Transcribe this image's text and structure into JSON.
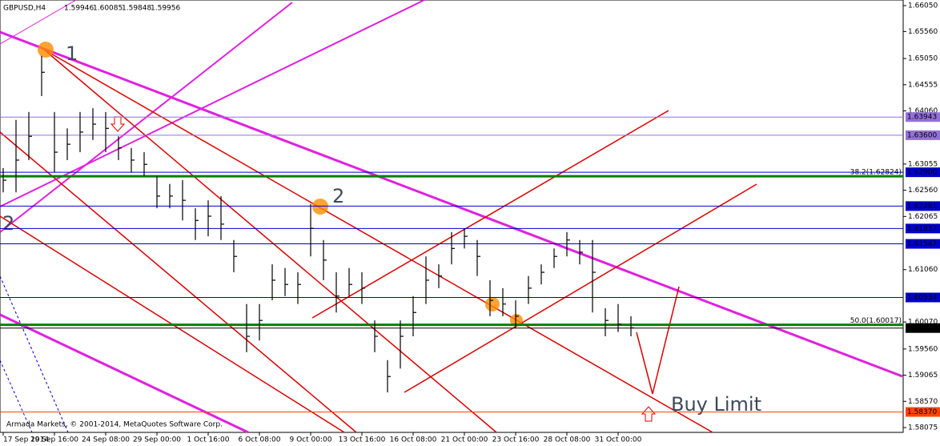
{
  "chart_data": {
    "type": "ohlc",
    "title": "GBPUSD,H4",
    "ohlc": [
      1.59946,
      1.60085,
      1.59848,
      1.59956
    ],
    "copyright": "Armada Markets, © 2001-2014, MetaQuotes Software Corp.",
    "annotations": [
      "1",
      "2",
      "2",
      "Buy Limit"
    ],
    "categories": [
      "17 Sep 2014",
      null,
      null,
      null,
      "19 Sep 16:00",
      null,
      null,
      null,
      "24 Sep 08:00",
      null,
      null,
      null,
      "29 Sep 00:00",
      null,
      null,
      null,
      "1 Oct 16:00",
      null,
      null,
      null,
      "6 Oct 08:00",
      null,
      null,
      null,
      "9 Oct 00:00",
      null,
      null,
      null,
      "13 Oct 16:00",
      null,
      null,
      null,
      "16 Oct 08:00",
      null,
      null,
      null,
      "21 Oct 00:00",
      null,
      null,
      null,
      "23 Oct 16:00",
      null,
      null,
      null,
      "28 Oct 08:00",
      null,
      null,
      null,
      "31 Oct 00:00",
      null
    ],
    "series": [
      {
        "name": "high",
        "color": "#000000",
        "values": [
          1.6298,
          1.6389,
          1.6404,
          1.651,
          1.6404,
          1.6373,
          1.6404,
          1.6411,
          1.6404,
          1.6358,
          1.6336,
          1.6328,
          1.6283,
          1.6268,
          1.6275,
          1.6222,
          1.6237,
          1.6245,
          1.6162,
          1.6041,
          1.6041,
          1.6116,
          1.6109,
          1.6101,
          1.623,
          1.6162,
          1.6101,
          1.6109,
          1.6101,
          1.601,
          1.5935,
          1.601,
          1.6056,
          1.6131,
          1.6116,
          1.6177,
          1.6184,
          1.6162,
          1.6086,
          1.6071,
          1.6048,
          1.6094,
          1.6116,
          1.6146,
          1.6177,
          1.6162,
          1.6162,
          1.6033,
          1.6041,
          1.6018
        ]
      },
      {
        "name": "low",
        "color": "#000000",
        "values": [
          1.6252,
          1.6252,
          1.6313,
          1.6434,
          1.629,
          1.6313,
          1.6328,
          1.6351,
          1.6328,
          1.6313,
          1.629,
          1.6283,
          1.6222,
          1.6222,
          1.6199,
          1.6162,
          1.6169,
          1.6162,
          1.6101,
          1.595,
          1.5972,
          1.6048,
          1.6056,
          1.6041,
          1.6131,
          1.6086,
          1.6025,
          1.6056,
          1.6041,
          1.595,
          1.5874,
          1.5919,
          1.598,
          1.6041,
          1.6071,
          1.6116,
          1.6146,
          1.6094,
          1.6018,
          1.6018,
          1.5995,
          1.6041,
          1.6078,
          1.6109,
          1.6131,
          1.6116,
          1.6025,
          1.598,
          1.5988,
          1.598
        ]
      },
      {
        "name": "close",
        "color": "#000000",
        "values": [
          1.6275,
          1.6313,
          1.6358,
          1.6479,
          1.6328,
          1.6343,
          1.6366,
          1.6381,
          1.6373,
          1.6336,
          1.6313,
          1.6305,
          1.6245,
          1.6245,
          1.6237,
          1.6199,
          1.6207,
          1.6192,
          1.6131,
          1.598,
          1.601,
          1.6086,
          1.6078,
          1.6078,
          1.6184,
          1.6124,
          1.6056,
          1.6078,
          1.6071,
          1.598,
          1.5904,
          1.598,
          1.6025,
          1.6086,
          1.6094,
          1.6146,
          1.6169,
          1.6131,
          1.6048,
          1.6041,
          1.6018,
          1.6071,
          1.6101,
          1.6131,
          1.6162,
          1.6139,
          1.6101,
          1.601,
          1.6003,
          1.5996
        ]
      }
    ],
    "ylim": [
      1.57984,
      1.66156
    ],
    "yticks": [
      {
        "value": 1.6605,
        "label": "1.66050"
      },
      {
        "value": 1.6556,
        "label": "1.65560"
      },
      {
        "value": 1.6505,
        "label": "1.65050"
      },
      1.64555,
      {
        "value": 1.6406,
        "label": "1.64060"
      },
      1.63055,
      {
        "value": 1.6256,
        "label": "1.62560"
      },
      1.62065,
      {
        "value": 1.6106,
        "label": "1.61060"
      },
      {
        "value": 1.6007,
        "label": "1.60070"
      },
      {
        "value": 1.5956,
        "label": "1.59560"
      },
      1.59065,
      {
        "value": 1.5857,
        "label": "1.58570"
      },
      1.58075
    ],
    "levels": [
      {
        "price": 1.63943,
        "color": "#9370db"
      },
      {
        "price": {
          "value": 1.636,
          "label": "1.63600"
        },
        "color": "#9370db"
      },
      {
        "price": {
          "value": 1.629,
          "label": "1.62900"
        },
        "color": "#0000cd"
      },
      {
        "price": 1.62261,
        "color": "#0000cd"
      },
      {
        "price": 1.61837,
        "color": "#0000cd"
      },
      {
        "price": 1.61547,
        "color": "#0000cd"
      },
      {
        "price": 1.60534,
        "color": "#0000cd"
      },
      {
        "price": 1.59956,
        "color": "#000000"
      },
      {
        "price": {
          "value": 1.5837,
          "label": "1.58370"
        },
        "color": "#ff4500"
      }
    ],
    "fibo": [
      {
        "value": 1.62824,
        "label": "38.2(1.62824)"
      },
      {
        "value": 1.60017,
        "label": "50.0(1.60017)"
      }
    ],
    "fibo_color": "#008000"
  }
}
